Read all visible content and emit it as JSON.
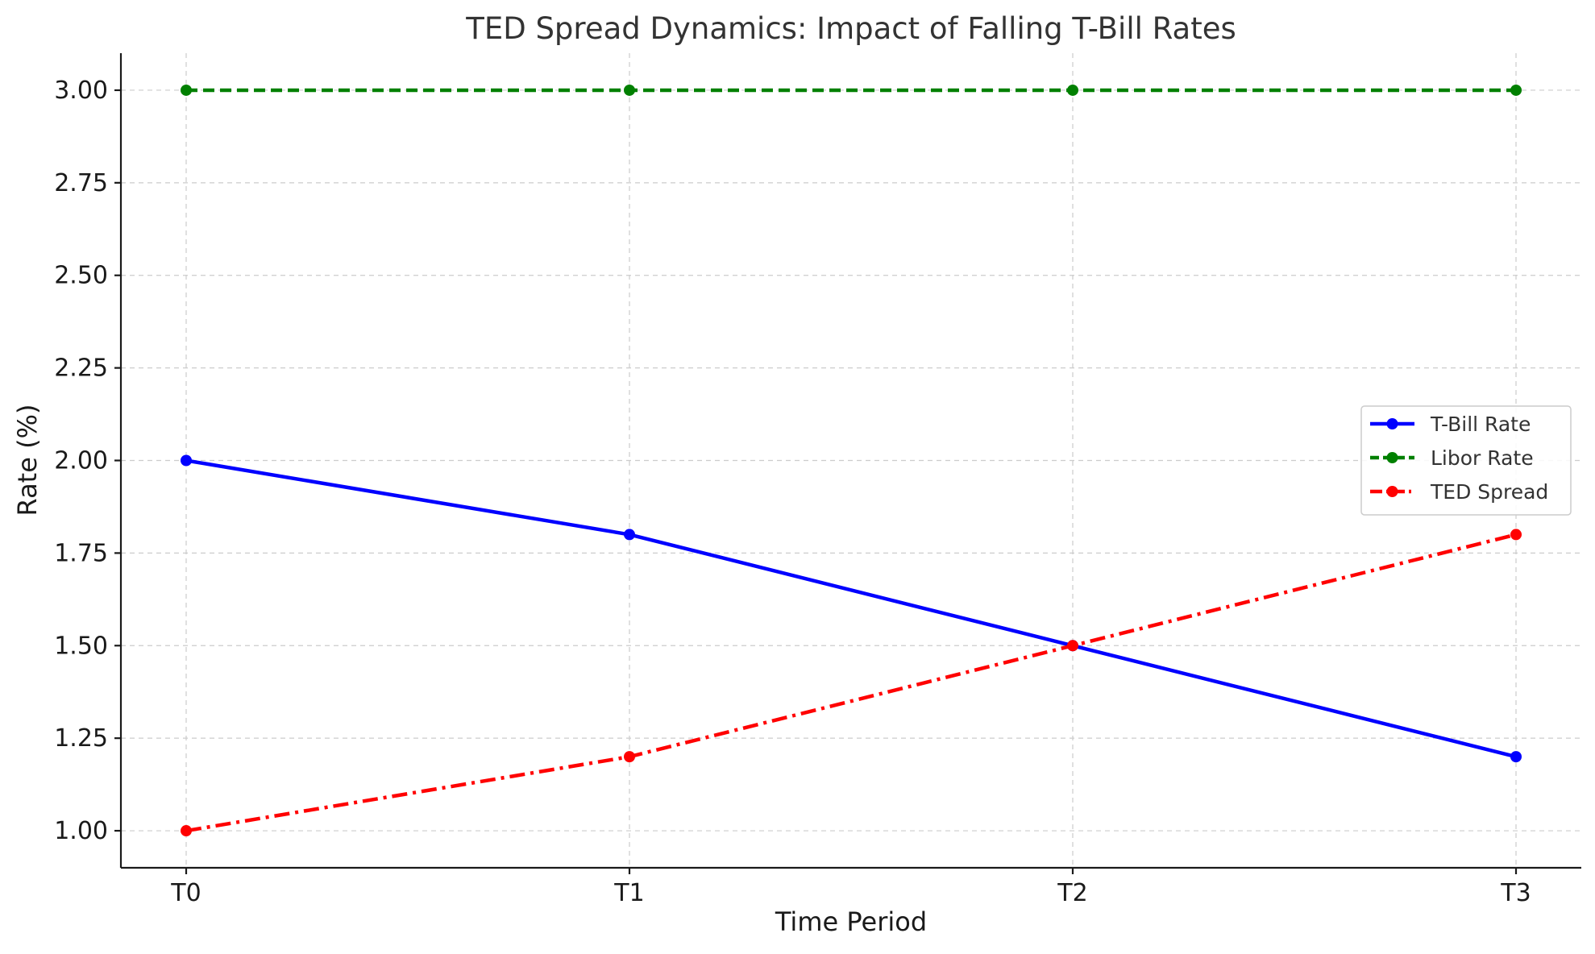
{
  "chart_data": {
    "type": "line",
    "title": "TED Spread Dynamics: Impact of Falling T-Bill Rates",
    "xlabel": "Time Period",
    "ylabel": "Rate (%)",
    "categories": [
      "T0",
      "T1",
      "T2",
      "T3"
    ],
    "ylim": [
      0.9,
      3.1
    ],
    "yticks": [
      1.0,
      1.25,
      1.5,
      1.75,
      2.0,
      2.25,
      2.5,
      2.75,
      3.0
    ],
    "ytick_labels": [
      "1.00",
      "1.25",
      "1.50",
      "1.75",
      "2.00",
      "2.25",
      "2.50",
      "2.75",
      "3.00"
    ],
    "grid": true,
    "legend_position": "center-right",
    "series": [
      {
        "name": "T-Bill Rate",
        "values": [
          2.0,
          1.8,
          1.5,
          1.2
        ],
        "color": "#0000ff",
        "line_style": "solid",
        "marker": "circle"
      },
      {
        "name": "Libor Rate",
        "values": [
          3.0,
          3.0,
          3.0,
          3.0
        ],
        "color": "#008000",
        "line_style": "dashed",
        "marker": "circle"
      },
      {
        "name": "TED Spread",
        "values": [
          1.0,
          1.2,
          1.5,
          1.8
        ],
        "color": "#ff0000",
        "line_style": "dashdot",
        "marker": "circle"
      }
    ]
  }
}
